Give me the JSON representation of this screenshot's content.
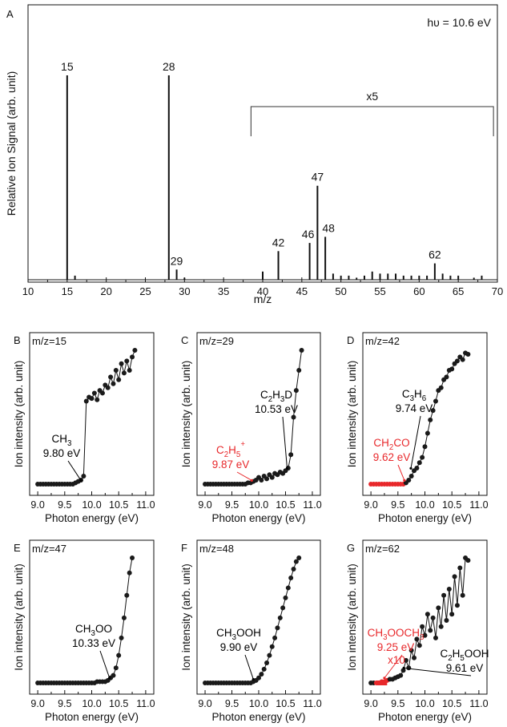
{
  "figure": {
    "panels": [
      "A",
      "B",
      "C",
      "D",
      "E",
      "F",
      "G"
    ]
  },
  "chart_data": [
    {
      "panel": "A",
      "type": "bar",
      "xlabel": "m/z",
      "ylabel": "Relative Ion Signal (arb. unit)",
      "xlim": [
        10,
        70
      ],
      "xticks": [
        "10",
        "15",
        "20",
        "25",
        "30",
        "35",
        "40",
        "45",
        "50",
        "55",
        "60",
        "65",
        "70"
      ],
      "annotation": "hυ = 10.6 eV",
      "scale_bracket": {
        "label": "x5",
        "x_start": 38.5,
        "x_end": 69.5
      },
      "x": [
        15,
        16,
        28,
        29,
        30,
        40,
        42,
        46,
        47,
        48,
        49,
        50,
        51,
        52,
        53,
        54,
        55,
        56,
        57,
        58,
        59,
        60,
        61,
        62,
        63,
        64,
        65,
        67,
        68
      ],
      "values": [
        100,
        2,
        100,
        5,
        1,
        4,
        14,
        18,
        46,
        21,
        3,
        2,
        2,
        1,
        2,
        4,
        3,
        3,
        3,
        2,
        2,
        2,
        2,
        8,
        3,
        2,
        2,
        1,
        2
      ],
      "peak_labels": [
        {
          "x": 15,
          "label": "15"
        },
        {
          "x": 28,
          "label": "28"
        },
        {
          "x": 29,
          "label": "29"
        },
        {
          "x": 42,
          "label": "42"
        },
        {
          "x": 46,
          "label": "46"
        },
        {
          "x": 47,
          "label": "47"
        },
        {
          "x": 48,
          "label": "48"
        },
        {
          "x": 62,
          "label": "62"
        }
      ]
    },
    {
      "panel": "B",
      "type": "line",
      "mz_label": "m/z=15",
      "xlabel": "Photon energy (eV)",
      "ylabel": "Ion intensity (arb. unit)",
      "xlim": [
        8.85,
        11.15
      ],
      "xticks": [
        "9.0",
        "9.5",
        "10.0",
        "10.5",
        "11.0"
      ],
      "annotations": [
        {
          "lines": [
            "CH3",
            "9.80 eV"
          ],
          "color": "#000000",
          "x": 9.8,
          "y": 0.01
        }
      ],
      "x": [
        9.0,
        9.05,
        9.1,
        9.15,
        9.2,
        9.25,
        9.3,
        9.35,
        9.4,
        9.45,
        9.5,
        9.55,
        9.6,
        9.65,
        9.7,
        9.75,
        9.8,
        9.85,
        9.9,
        9.95,
        10.0,
        10.05,
        10.1,
        10.15,
        10.2,
        10.25,
        10.3,
        10.35,
        10.4,
        10.45,
        10.5,
        10.55,
        10.6,
        10.65,
        10.7,
        10.75,
        10.8
      ],
      "y": [
        0,
        0,
        0,
        0,
        0,
        0,
        0,
        0,
        0,
        0,
        0,
        0,
        0,
        0,
        0.01,
        0.02,
        0.03,
        0.06,
        0.62,
        0.65,
        0.64,
        0.68,
        0.63,
        0.7,
        0.68,
        0.74,
        0.72,
        0.8,
        0.75,
        0.85,
        0.78,
        0.9,
        0.83,
        0.92,
        0.85,
        0.95,
        1.0
      ]
    },
    {
      "panel": "C",
      "type": "line",
      "mz_label": "m/z=29",
      "xlabel": "Photon energy (eV)",
      "ylabel": "Ion intensity (arb. unit)",
      "xlim": [
        8.85,
        11.15
      ],
      "xticks": [
        "9.0",
        "9.5",
        "10.0",
        "10.5",
        "11.0"
      ],
      "annotations": [
        {
          "lines": [
            "C2H3D",
            "10.53 eV"
          ],
          "color": "#000000",
          "x": 10.53,
          "y": 0.1
        },
        {
          "lines": [
            "C2H5+",
            "9.87 eV"
          ],
          "color": "#e8282b",
          "x": 9.87,
          "y": 0.01
        }
      ],
      "x": [
        9.0,
        9.05,
        9.1,
        9.15,
        9.2,
        9.25,
        9.3,
        9.35,
        9.4,
        9.45,
        9.5,
        9.55,
        9.6,
        9.65,
        9.7,
        9.75,
        9.8,
        9.85,
        9.9,
        9.95,
        10.0,
        10.05,
        10.1,
        10.15,
        10.2,
        10.25,
        10.3,
        10.35,
        10.4,
        10.45,
        10.5,
        10.55,
        10.6,
        10.65,
        10.7,
        10.75,
        10.8
      ],
      "y": [
        0,
        0,
        0,
        0,
        0,
        0,
        0,
        0,
        0,
        0,
        0,
        0,
        0,
        0,
        0,
        0,
        0.01,
        0.01,
        0.02,
        0.03,
        0.05,
        0.03,
        0.06,
        0.04,
        0.07,
        0.05,
        0.08,
        0.07,
        0.09,
        0.08,
        0.1,
        0.12,
        0.22,
        0.5,
        0.7,
        0.85,
        1.0
      ]
    },
    {
      "panel": "D",
      "type": "line",
      "mz_label": "m/z=42",
      "xlabel": "Photon energy (eV)",
      "ylabel": "Ion intensity (arb. unit)",
      "xlim": [
        8.85,
        11.15
      ],
      "xticks": [
        "9.0",
        "9.5",
        "10.0",
        "10.5",
        "11.0"
      ],
      "annotations": [
        {
          "lines": [
            "C3H6",
            "9.74 eV"
          ],
          "color": "#000000",
          "x": 9.74,
          "y": 0.1
        },
        {
          "lines": [
            "CH2CO",
            "9.62 eV"
          ],
          "color": "#e8282b",
          "x": 9.62,
          "y": 0.01
        }
      ],
      "x": [
        9.0,
        9.05,
        9.1,
        9.15,
        9.2,
        9.25,
        9.3,
        9.35,
        9.4,
        9.45,
        9.5,
        9.55,
        9.6,
        9.65,
        9.7,
        9.75,
        9.8,
        9.85,
        9.9,
        9.95,
        10.0,
        10.05,
        10.1,
        10.15,
        10.2,
        10.25,
        10.3,
        10.35,
        10.4,
        10.45,
        10.5,
        10.55,
        10.6,
        10.65,
        10.7,
        10.75,
        10.8
      ],
      "y": [
        0,
        0,
        0,
        0,
        0,
        0,
        0,
        0,
        0,
        0,
        0,
        0,
        0,
        0.01,
        0.03,
        0.06,
        0.1,
        0.12,
        0.16,
        0.2,
        0.28,
        0.38,
        0.48,
        0.55,
        0.62,
        0.7,
        0.72,
        0.78,
        0.8,
        0.85,
        0.86,
        0.9,
        0.92,
        0.95,
        0.93,
        0.98,
        0.97
      ]
    },
    {
      "panel": "E",
      "type": "line",
      "mz_label": "m/z=47",
      "xlabel": "Photon energy (eV)",
      "ylabel": "Ion intensity (arb. unit)",
      "xlim": [
        8.85,
        11.15
      ],
      "xticks": [
        "9.0",
        "9.5",
        "10.0",
        "10.5",
        "11.0"
      ],
      "annotations": [
        {
          "lines": [
            "CH3OO",
            "10.33 eV"
          ],
          "color": "#000000",
          "x": 10.33,
          "y": 0.02
        }
      ],
      "x": [
        9.0,
        9.05,
        9.1,
        9.15,
        9.2,
        9.25,
        9.3,
        9.35,
        9.4,
        9.45,
        9.5,
        9.55,
        9.6,
        9.65,
        9.7,
        9.75,
        9.8,
        9.85,
        9.9,
        9.95,
        10.0,
        10.05,
        10.1,
        10.15,
        10.2,
        10.25,
        10.3,
        10.35,
        10.4,
        10.45,
        10.5,
        10.55,
        10.6,
        10.65,
        10.7,
        10.75
      ],
      "y": [
        0,
        0,
        0,
        0,
        0,
        0,
        0,
        0,
        0,
        0,
        0,
        0,
        0,
        0,
        0,
        0,
        0,
        0,
        0,
        0,
        0,
        0,
        0.01,
        0.01,
        0.01,
        0.01,
        0.02,
        0.04,
        0.06,
        0.12,
        0.22,
        0.36,
        0.52,
        0.7,
        0.88,
        1.0
      ]
    },
    {
      "panel": "F",
      "type": "line",
      "mz_label": "m/z=48",
      "xlabel": "Photon energy (eV)",
      "ylabel": "Ion intensity (arb. unit)",
      "xlim": [
        8.85,
        11.15
      ],
      "xticks": [
        "9.0",
        "9.5",
        "10.0",
        "10.5",
        "11.0"
      ],
      "annotations": [
        {
          "lines": [
            "CH3OOH",
            "9.90 eV"
          ],
          "color": "#000000",
          "x": 9.9,
          "y": 0.01
        }
      ],
      "x": [
        9.0,
        9.05,
        9.1,
        9.15,
        9.2,
        9.25,
        9.3,
        9.35,
        9.4,
        9.45,
        9.5,
        9.55,
        9.6,
        9.65,
        9.7,
        9.75,
        9.8,
        9.85,
        9.9,
        9.95,
        10.0,
        10.05,
        10.1,
        10.15,
        10.2,
        10.25,
        10.3,
        10.35,
        10.4,
        10.45,
        10.5,
        10.55,
        10.6,
        10.65,
        10.7,
        10.75
      ],
      "y": [
        0,
        0,
        0,
        0,
        0,
        0,
        0,
        0,
        0,
        0,
        0,
        0,
        0,
        0,
        0,
        0,
        0,
        0,
        0.01,
        0.02,
        0.04,
        0.07,
        0.11,
        0.16,
        0.22,
        0.29,
        0.36,
        0.44,
        0.52,
        0.6,
        0.68,
        0.76,
        0.84,
        0.91,
        0.97,
        1.0
      ]
    },
    {
      "panel": "G",
      "type": "line",
      "mz_label": "m/z=62",
      "xlabel": "Photon energy (eV)",
      "ylabel": "Ion intensity (arb. unit)",
      "xlim": [
        8.85,
        11.15
      ],
      "xticks": [
        "9.0",
        "9.5",
        "10.0",
        "10.5",
        "11.0"
      ],
      "annotations": [
        {
          "lines": [
            "CH3OOCH3",
            "9.25 eV"
          ],
          "color": "#e8282b",
          "x": 9.25,
          "y": 0.02
        },
        {
          "lines": [
            "C2H5OOH",
            "9.61 eV"
          ],
          "color": "#000000",
          "x": 9.61,
          "y": 0.1
        },
        {
          "lines": [
            "x10"
          ],
          "color": "#e8282b",
          "x": 9.27,
          "y": 0.06
        }
      ],
      "x": [
        9.0,
        9.05,
        9.1,
        9.15,
        9.2,
        9.25,
        9.3,
        9.35,
        9.4,
        9.45,
        9.5,
        9.55,
        9.6,
        9.65,
        9.7,
        9.75,
        9.8,
        9.85,
        9.9,
        9.95,
        10.0,
        10.05,
        10.1,
        10.15,
        10.2,
        10.25,
        10.3,
        10.35,
        10.4,
        10.45,
        10.5,
        10.55,
        10.6,
        10.65,
        10.7,
        10.75,
        10.8
      ],
      "y": [
        0,
        0,
        0,
        0,
        0.01,
        0.01,
        0.02,
        0.03,
        0.03,
        0.04,
        0.05,
        0.06,
        0.1,
        0.18,
        0.12,
        0.26,
        0.2,
        0.35,
        0.3,
        0.45,
        0.38,
        0.55,
        0.42,
        0.52,
        0.36,
        0.6,
        0.45,
        0.7,
        0.5,
        0.75,
        0.55,
        0.85,
        0.62,
        0.92,
        0.7,
        1.0,
        0.98
      ]
    }
  ]
}
